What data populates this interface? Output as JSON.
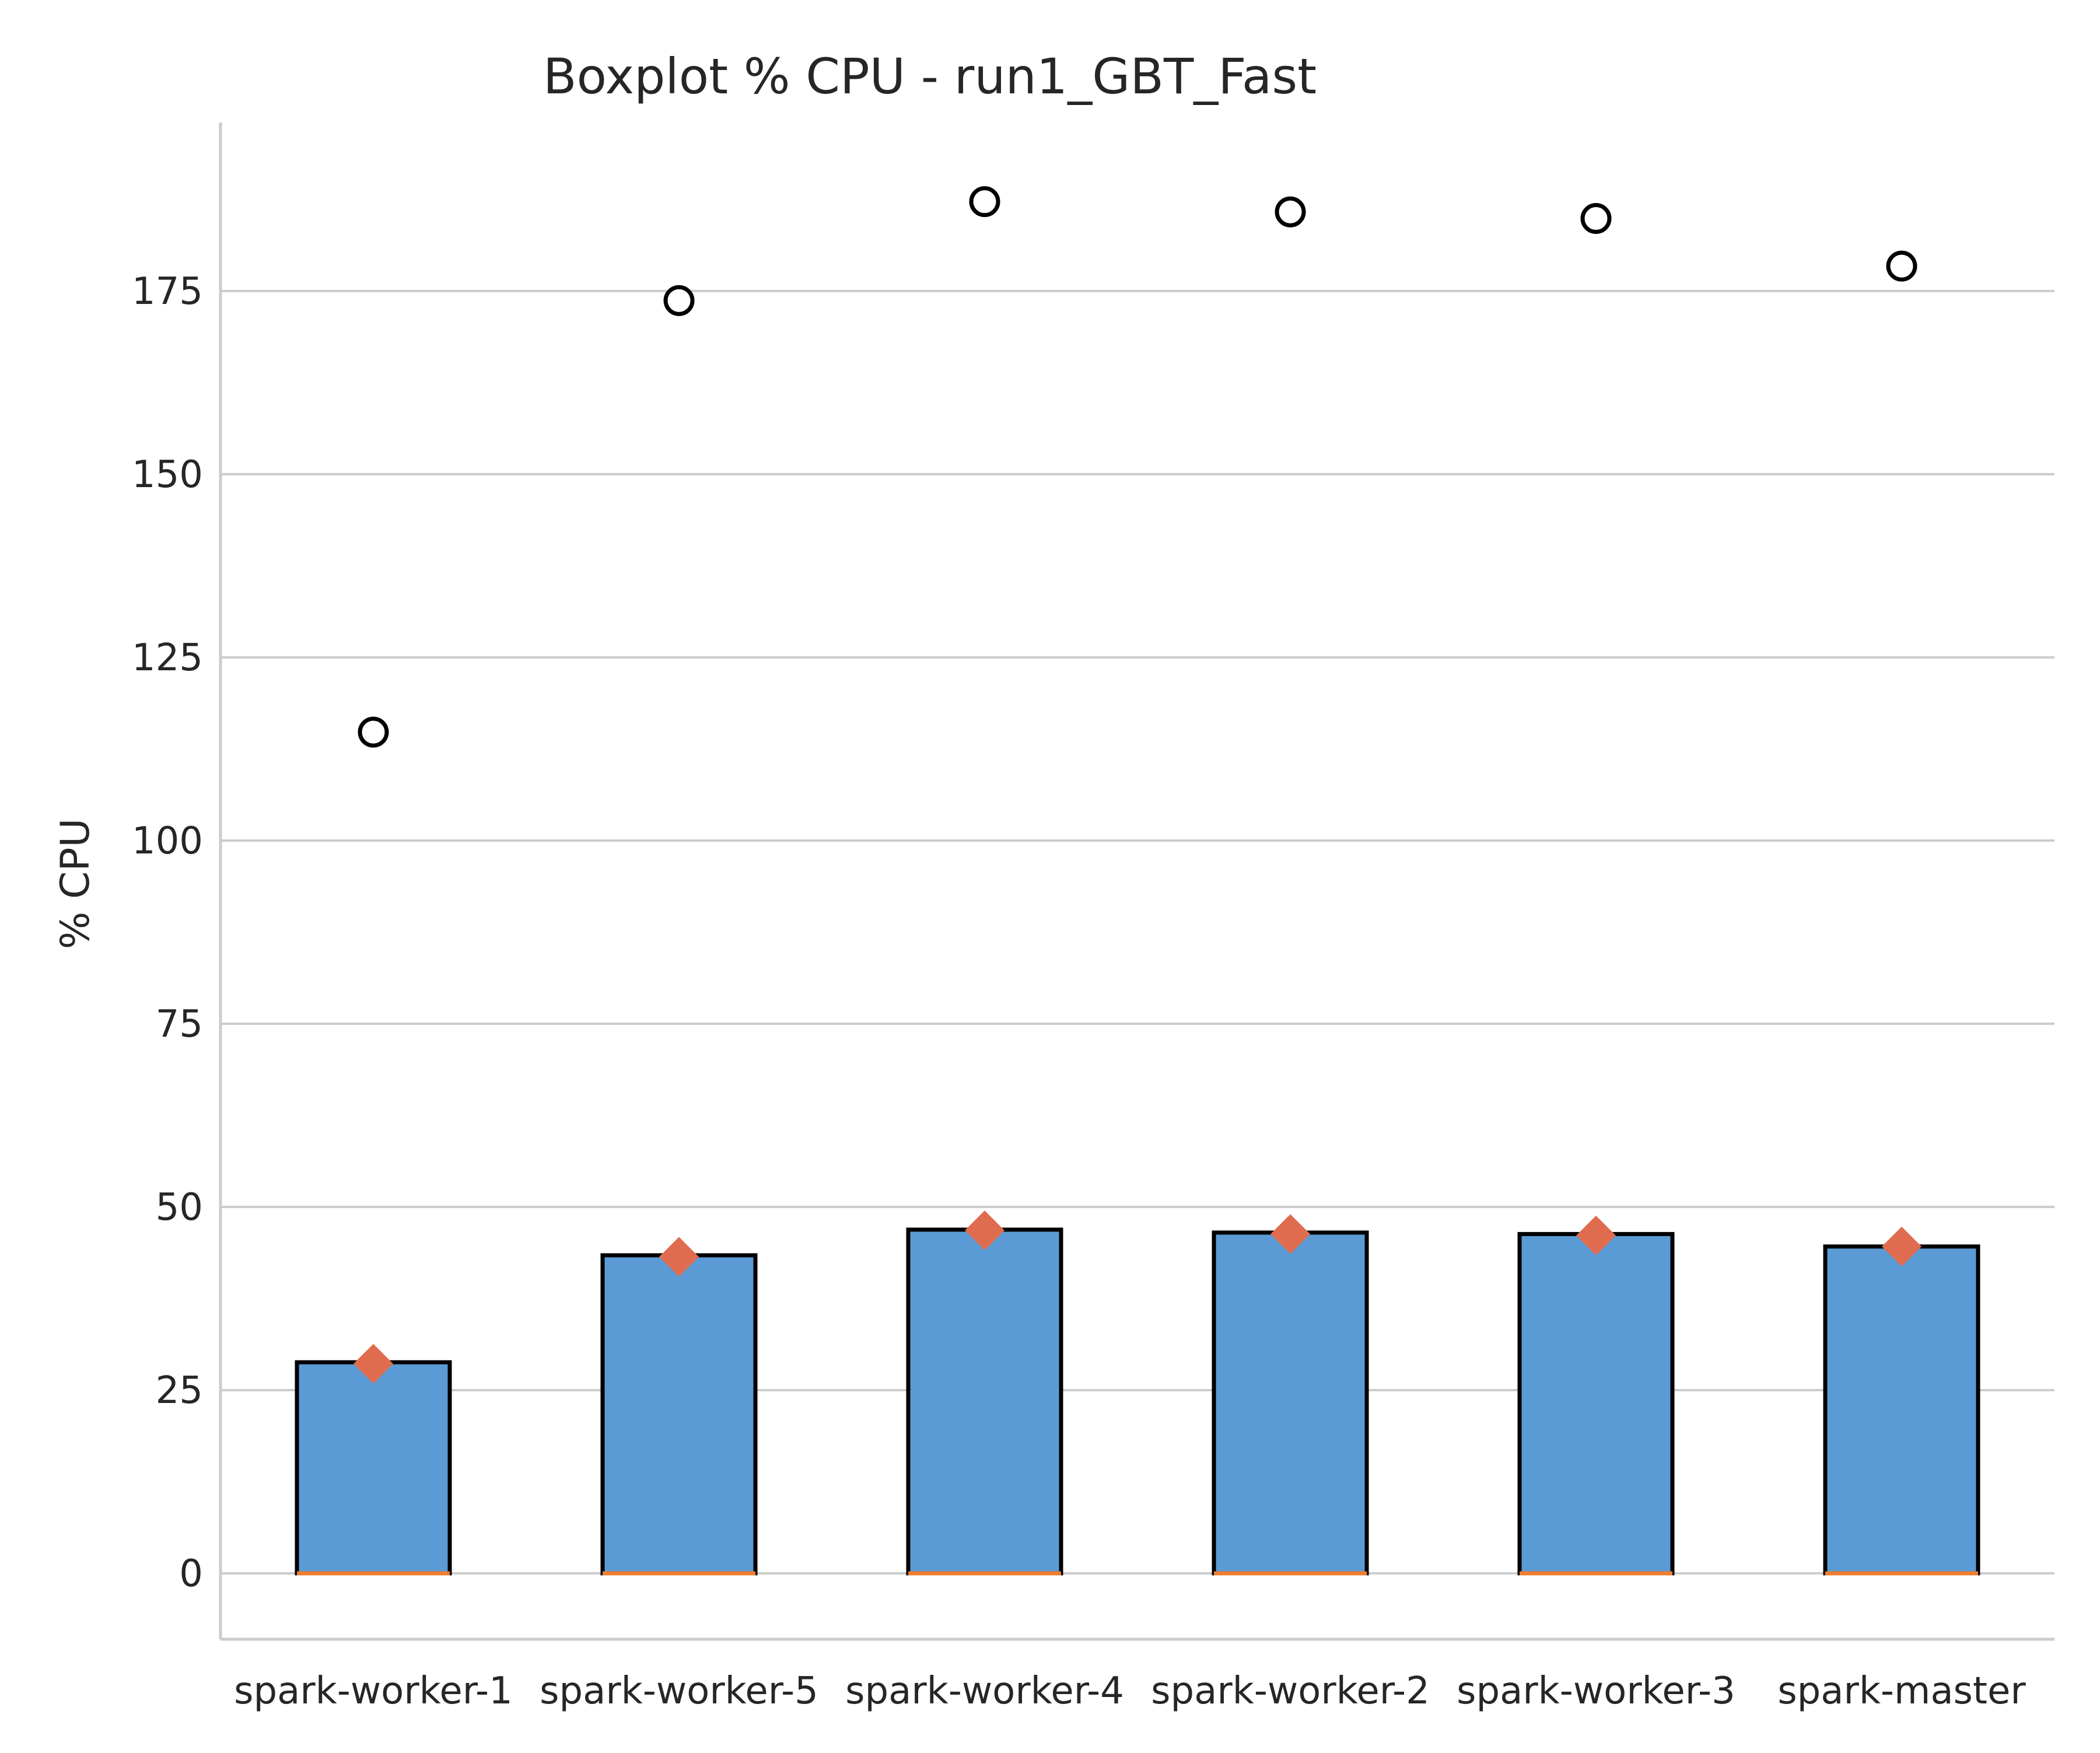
{
  "chart_data": {
    "type": "box",
    "title": "Boxplot % CPU - run1_GBT_Fast",
    "xlabel": "",
    "ylabel": "% CPU",
    "ylim": [
      -9,
      198
    ],
    "yticks": [
      0,
      25,
      50,
      75,
      100,
      125,
      150,
      175
    ],
    "grid": "horizontal",
    "categories": [
      "spark-worker-1",
      "spark-worker-5",
      "spark-worker-4",
      "spark-worker-2",
      "spark-worker-3",
      "spark-master"
    ],
    "boxes": [
      {
        "median": 0,
        "q1": 0,
        "q3": 28.8,
        "mean": 28.6,
        "outliers": [
          114.8
        ]
      },
      {
        "median": 0,
        "q1": 0,
        "q3": 43.4,
        "mean": 43.2,
        "outliers": [
          173.7
        ]
      },
      {
        "median": 0,
        "q1": 0,
        "q3": 46.9,
        "mean": 46.8,
        "outliers": [
          187.2
        ]
      },
      {
        "median": 0,
        "q1": 0,
        "q3": 46.5,
        "mean": 46.3,
        "outliers": [
          185.8
        ]
      },
      {
        "median": 0,
        "q1": 0,
        "q3": 46.3,
        "mean": 46.1,
        "outliers": [
          184.9
        ]
      },
      {
        "median": 0,
        "q1": 0,
        "q3": 44.6,
        "mean": 44.6,
        "outliers": [
          178.4
        ]
      }
    ],
    "colors": {
      "box_fill": "#5b9bd5",
      "box_edge": "#000000",
      "median": "#ed7d31",
      "mean_marker": "#e06c4f",
      "grid": "#cccccc",
      "axis": "#cccccc"
    }
  }
}
